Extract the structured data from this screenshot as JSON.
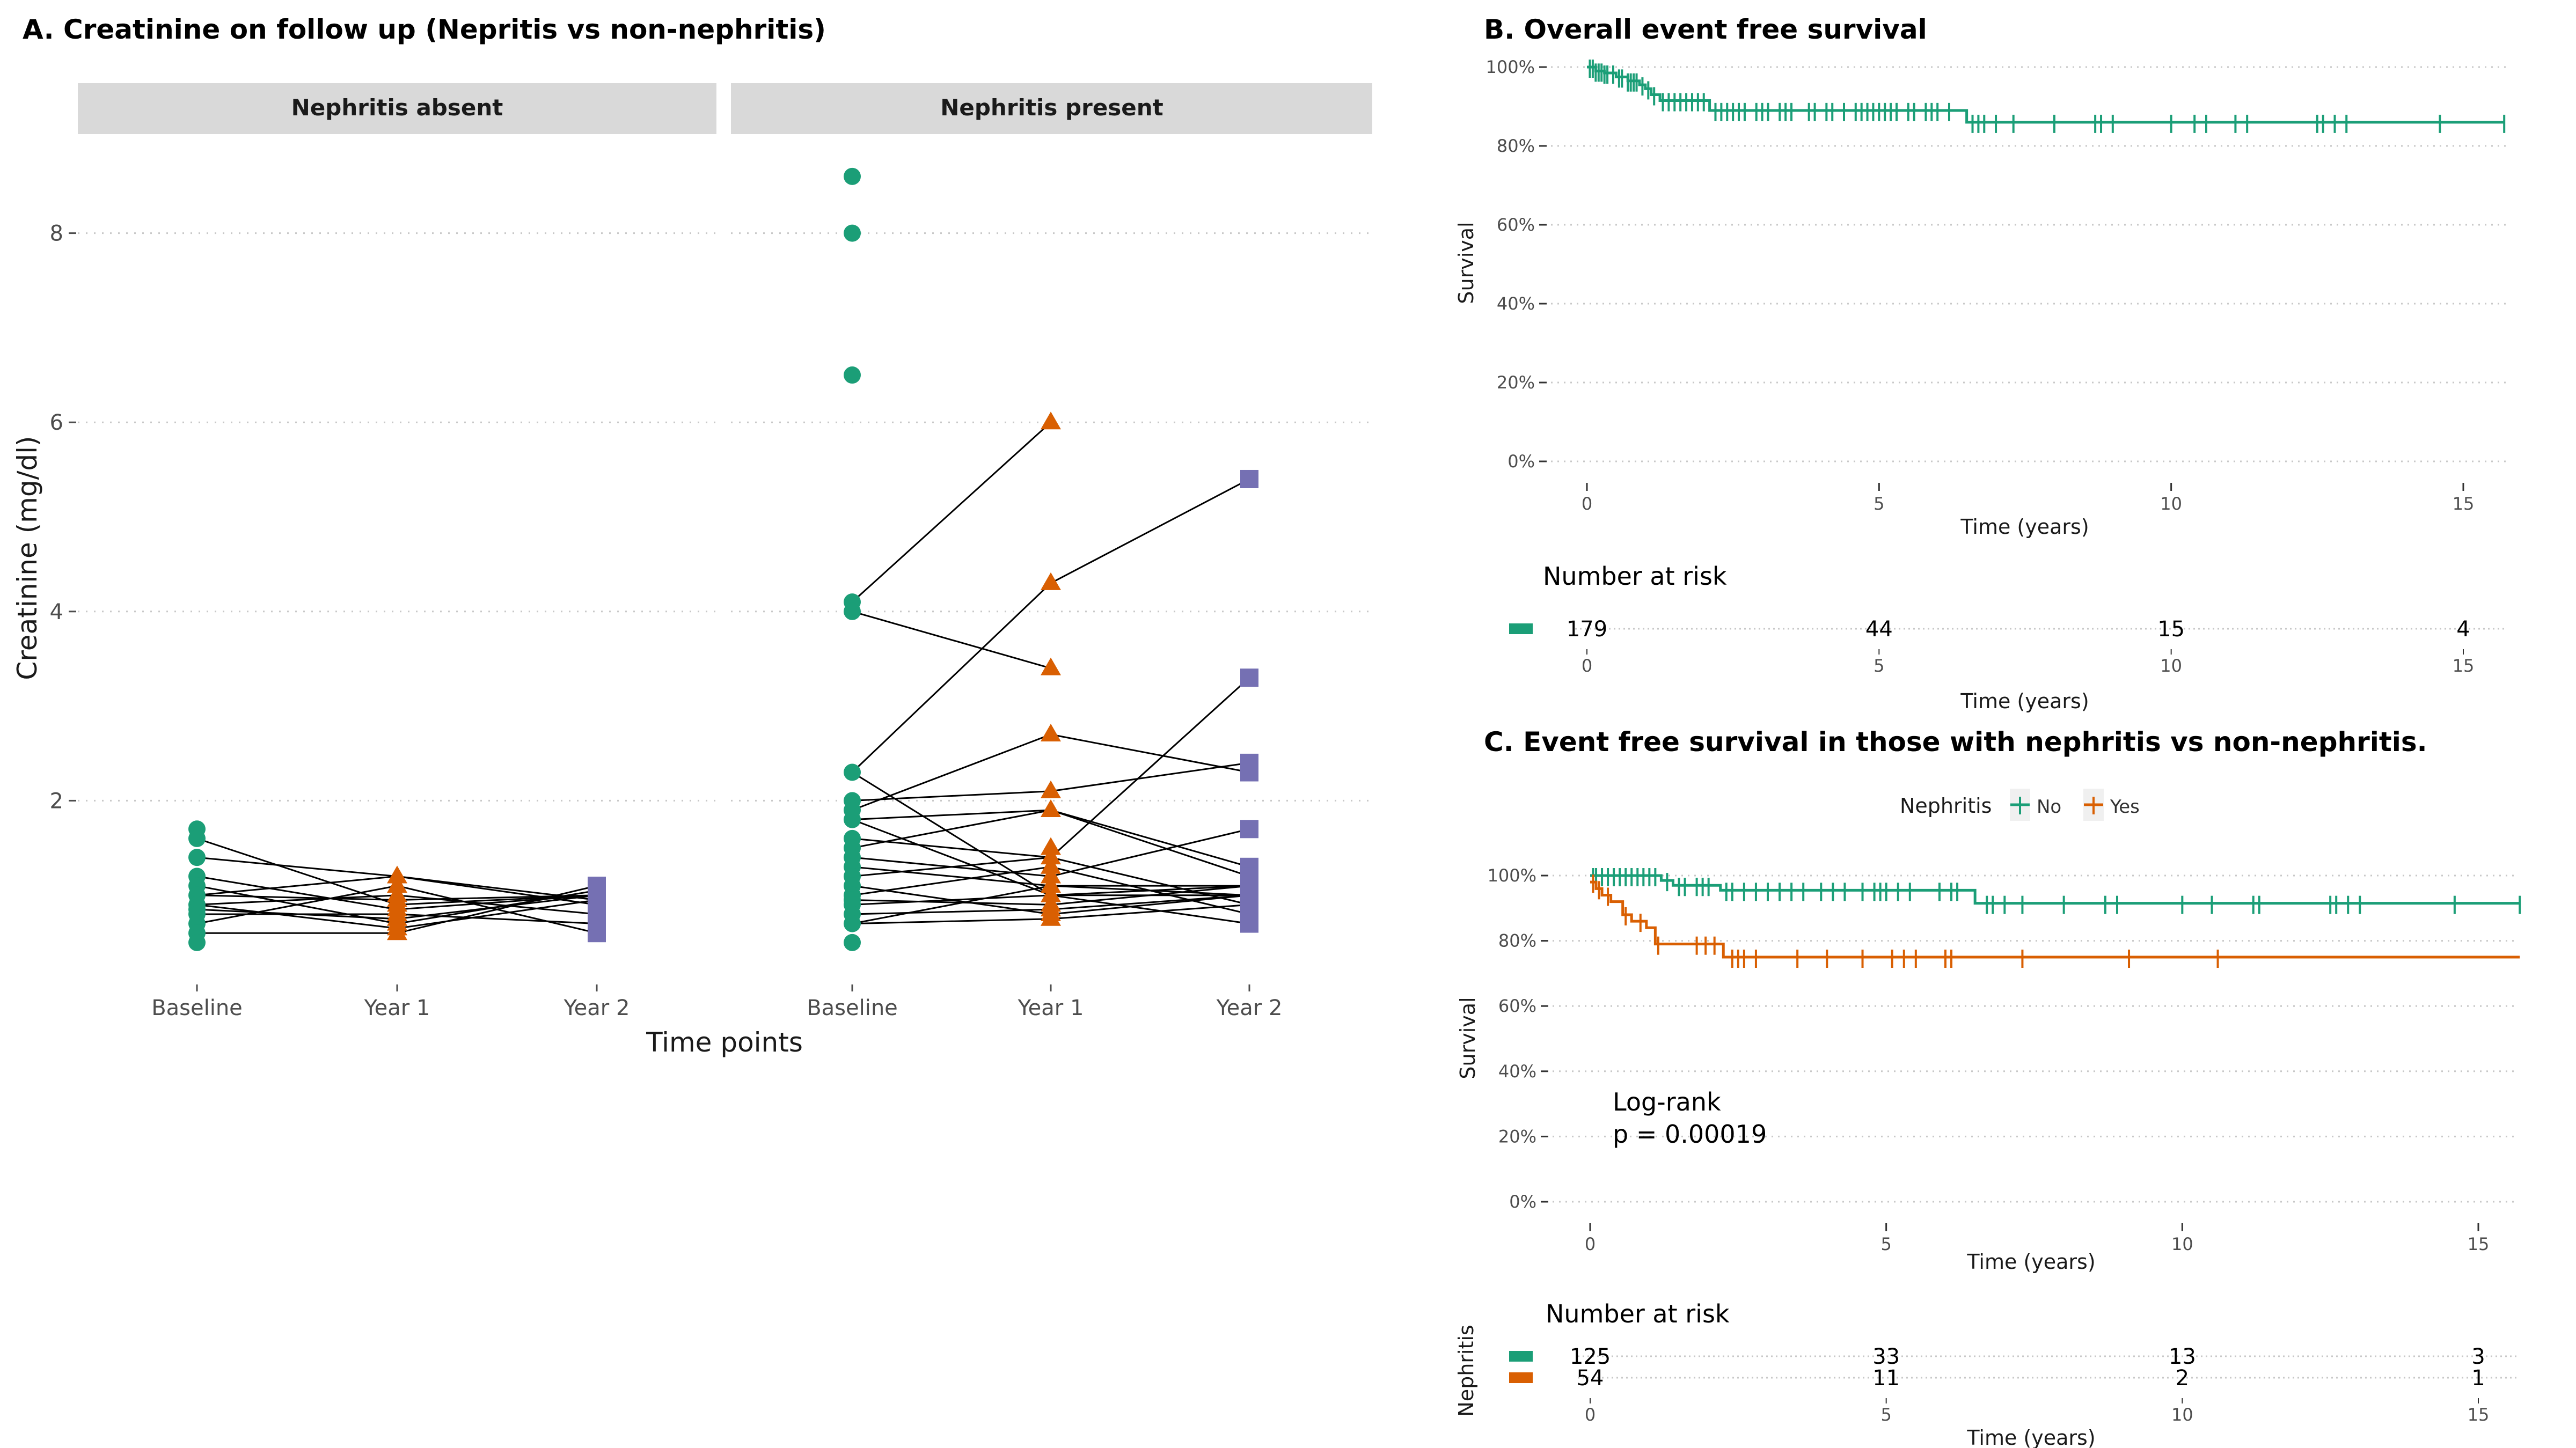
{
  "colors": {
    "baseline": "#1b9e77",
    "year1": "#d95f02",
    "year2": "#7570b3",
    "no": "#1b9e77",
    "yes": "#d95f02",
    "grid": "#c8c8c8",
    "strip": "#d9d9d9"
  },
  "chart_data": [
    {
      "id": "A",
      "type": "line",
      "title": "A. Creatinine on follow up (Nepritis vs non-nephritis)",
      "xlabel": "Time points",
      "ylabel": "Creatinine (mg/dl)",
      "categories": [
        "Baseline",
        "Year 1",
        "Year 2"
      ],
      "yticks": [
        2,
        4,
        6,
        8
      ],
      "ylim": [
        0.3,
        9.0
      ],
      "grid": "horizontal-dotted",
      "facets": [
        {
          "label": "Nephritis absent",
          "points": {
            "Baseline": [
              1.7,
              1.6,
              1.4,
              1.2,
              1.1,
              1.0,
              0.9,
              0.85,
              0.8,
              0.7,
              0.6,
              0.5
            ],
            "Year 1": [
              1.2,
              1.1,
              1.0,
              0.95,
              0.9,
              0.85,
              0.8,
              0.75,
              0.7,
              0.65,
              0.6
            ],
            "Year 2": [
              1.1,
              1.05,
              1.0,
              0.95,
              0.9,
              0.8,
              0.7,
              0.6
            ]
          },
          "trajectories": [
            [
              1.6,
              0.9,
              1.0
            ],
            [
              1.4,
              1.2,
              0.95
            ],
            [
              1.2,
              0.85,
              1.0
            ],
            [
              1.1,
              0.7,
              1.05
            ],
            [
              1.0,
              1.2,
              0.9
            ],
            [
              0.9,
              1.0,
              0.8
            ],
            [
              0.85,
              0.75,
              1.0
            ],
            [
              0.8,
              0.8,
              0.7
            ],
            [
              0.7,
              1.1,
              0.6
            ],
            [
              0.6,
              0.6,
              1.1
            ],
            [
              0.9,
              0.65,
              0.95
            ],
            [
              1.0,
              0.95,
              1.0
            ]
          ]
        },
        {
          "label": "Nephritis present",
          "points": {
            "Baseline": [
              8.6,
              8.0,
              6.5,
              4.1,
              4.0,
              2.3,
              2.0,
              1.9,
              1.8,
              1.6,
              1.5,
              1.4,
              1.3,
              1.2,
              1.1,
              1.0,
              0.95,
              0.9,
              0.8,
              0.7,
              0.5
            ],
            "Year 1": [
              6.0,
              4.3,
              3.4,
              2.7,
              2.1,
              1.9,
              1.5,
              1.4,
              1.3,
              1.2,
              1.1,
              1.0,
              0.9,
              0.85,
              0.8,
              0.75
            ],
            "Year 2": [
              5.4,
              3.3,
              2.4,
              2.3,
              1.7,
              1.3,
              1.2,
              1.1,
              1.0,
              0.9,
              0.8,
              0.7
            ]
          },
          "trajectories": [
            [
              4.1,
              6.0,
              null
            ],
            [
              2.3,
              4.3,
              5.4
            ],
            [
              4.0,
              3.4,
              null
            ],
            [
              1.9,
              2.7,
              2.3
            ],
            [
              2.0,
              2.1,
              2.4
            ],
            [
              1.8,
              1.9,
              1.2
            ],
            [
              1.6,
              1.4,
              3.3
            ],
            [
              2.3,
              1.0,
              1.0
            ],
            [
              1.5,
              1.9,
              1.3
            ],
            [
              1.4,
              1.2,
              1.7
            ],
            [
              1.3,
              1.1,
              1.1
            ],
            [
              1.2,
              1.4,
              0.9
            ],
            [
              1.1,
              0.8,
              1.0
            ],
            [
              1.0,
              1.3,
              0.8
            ],
            [
              0.95,
              0.9,
              1.1
            ],
            [
              0.9,
              1.0,
              0.7
            ],
            [
              0.8,
              0.85,
              1.0
            ],
            [
              0.7,
              0.75,
              0.9
            ],
            [
              0.7,
              1.1,
              1.0
            ],
            [
              1.8,
              1.0,
              1.1
            ]
          ]
        }
      ]
    },
    {
      "id": "B",
      "type": "line",
      "title": "B. Overall event free survival",
      "xlabel": "Time (years)",
      "ylabel": "Survival",
      "xticks": [
        0,
        5,
        10,
        15
      ],
      "yticks": [
        "0%",
        "20%",
        "40%",
        "60%",
        "80%",
        "100%"
      ],
      "xlim": [
        0,
        15.7
      ],
      "ylim": [
        0,
        1
      ],
      "grid": "horizontal-dotted",
      "series": [
        {
          "name": "All",
          "color_key": "no",
          "steps": [
            [
              0,
              1.0
            ],
            [
              0.15,
              0.99
            ],
            [
              0.3,
              0.985
            ],
            [
              0.5,
              0.975
            ],
            [
              0.7,
              0.965
            ],
            [
              0.9,
              0.955
            ],
            [
              1.0,
              0.945
            ],
            [
              1.1,
              0.93
            ],
            [
              1.25,
              0.915
            ],
            [
              2.1,
              0.89
            ],
            [
              6.5,
              0.86
            ],
            [
              15.7,
              0.86
            ]
          ],
          "censors": [
            0.05,
            0.1,
            0.15,
            0.2,
            0.25,
            0.3,
            0.35,
            0.45,
            0.55,
            0.6,
            0.7,
            0.75,
            0.8,
            0.85,
            0.95,
            1.05,
            1.15,
            1.3,
            1.4,
            1.5,
            1.6,
            1.7,
            1.8,
            1.9,
            2.0,
            2.2,
            2.3,
            2.4,
            2.5,
            2.6,
            2.7,
            2.9,
            3.0,
            3.1,
            3.3,
            3.4,
            3.5,
            3.8,
            3.9,
            4.1,
            4.2,
            4.4,
            4.6,
            4.7,
            4.8,
            4.9,
            5.0,
            5.1,
            5.2,
            5.3,
            5.5,
            5.6,
            5.8,
            5.9,
            6.0,
            6.2,
            6.6,
            6.7,
            6.8,
            7.0,
            7.3,
            8.0,
            8.7,
            8.8,
            9.0,
            10.0,
            10.4,
            10.6,
            11.1,
            11.3,
            12.5,
            12.6,
            12.8,
            13.0,
            14.6,
            15.7
          ]
        }
      ],
      "risk_table": {
        "title": "Number at risk",
        "rows": [
          {
            "color_key": "no",
            "values": [
              179,
              44,
              15,
              4
            ]
          }
        ],
        "times": [
          0,
          5,
          10,
          15
        ]
      }
    },
    {
      "id": "C",
      "type": "line",
      "title": "C. Event free survival in those with nephritis vs non-nephritis.",
      "xlabel": "Time (years)",
      "ylabel": "Survival",
      "legend": {
        "title": "Nephritis",
        "entries": [
          "No",
          "Yes"
        ],
        "position": "top"
      },
      "annotation": [
        "Log-rank",
        "p = 0.00019"
      ],
      "xticks": [
        0,
        5,
        10,
        15
      ],
      "yticks": [
        "0%",
        "20%",
        "40%",
        "60%",
        "80%",
        "100%"
      ],
      "xlim": [
        0,
        15.7
      ],
      "ylim": [
        0,
        1
      ],
      "grid": "horizontal-dotted",
      "series": [
        {
          "name": "No",
          "color_key": "no",
          "steps": [
            [
              0,
              1.0
            ],
            [
              1.2,
              0.985
            ],
            [
              1.4,
              0.97
            ],
            [
              2.2,
              0.955
            ],
            [
              6.5,
              0.915
            ],
            [
              15.7,
              0.915
            ]
          ],
          "censors": [
            0.05,
            0.1,
            0.2,
            0.3,
            0.4,
            0.5,
            0.6,
            0.7,
            0.8,
            0.9,
            1.0,
            1.1,
            1.3,
            1.5,
            1.6,
            1.8,
            1.9,
            2.0,
            2.3,
            2.4,
            2.6,
            2.8,
            3.0,
            3.2,
            3.4,
            3.6,
            3.9,
            4.1,
            4.3,
            4.6,
            4.8,
            4.9,
            5.0,
            5.2,
            5.4,
            5.9,
            6.1,
            6.2,
            6.7,
            6.8,
            7.0,
            7.3,
            8.0,
            8.7,
            8.9,
            10.0,
            10.5,
            11.2,
            11.3,
            12.5,
            12.6,
            12.8,
            13.0,
            14.6,
            15.7
          ]
        },
        {
          "name": "Yes",
          "color_key": "yes",
          "steps": [
            [
              0,
              0.98
            ],
            [
              0.1,
              0.96
            ],
            [
              0.2,
              0.94
            ],
            [
              0.35,
              0.92
            ],
            [
              0.55,
              0.88
            ],
            [
              0.7,
              0.86
            ],
            [
              0.95,
              0.84
            ],
            [
              1.1,
              0.79
            ],
            [
              2.25,
              0.75
            ],
            [
              15.7,
              0.75
            ]
          ],
          "censors": [
            0.05,
            0.15,
            0.3,
            0.6,
            0.85,
            1.15,
            1.8,
            1.95,
            2.1,
            2.4,
            2.5,
            2.6,
            2.8,
            3.5,
            4.0,
            4.6,
            5.1,
            5.3,
            5.5,
            6.0,
            6.1,
            7.3,
            9.1,
            10.6
          ]
        }
      ],
      "risk_table": {
        "title": "Number at risk",
        "ylabel": "Nephritis",
        "rows": [
          {
            "color_key": "no",
            "values": [
              125,
              33,
              13,
              3
            ]
          },
          {
            "color_key": "yes",
            "values": [
              54,
              11,
              2,
              1
            ]
          }
        ],
        "times": [
          0,
          5,
          10,
          15
        ]
      }
    }
  ]
}
